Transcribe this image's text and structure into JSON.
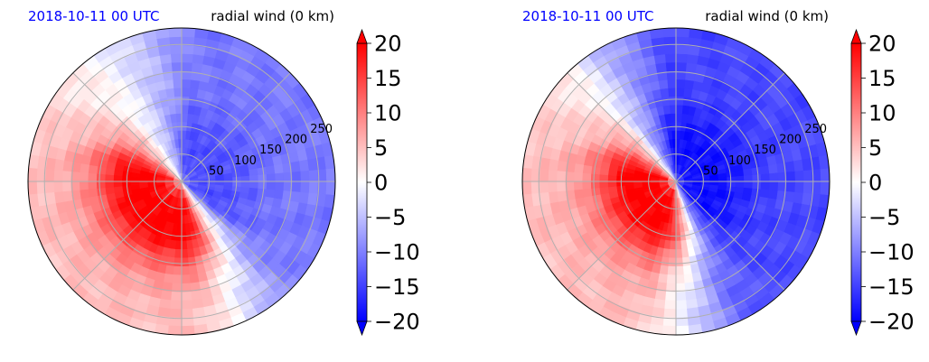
{
  "chart_data": [
    {
      "type": "heatmap",
      "projection": "polar",
      "title_left": "2018-10-11 00 UTC",
      "title_right": "radial wind (0 km)",
      "radial_ticks": [
        50,
        100,
        150,
        200,
        250
      ],
      "r_max": 280,
      "grid": true,
      "colorbar": {
        "ticks": [
          "20",
          "15",
          "10",
          "5",
          "0",
          "−5",
          "−10",
          "−15",
          "−20"
        ],
        "tick_values": [
          20,
          15,
          10,
          5,
          0,
          -5,
          -10,
          -15,
          -20
        ],
        "range": [
          -20,
          20
        ],
        "colormap": "bwr",
        "extend": "both"
      },
      "field_pattern": {
        "positive_sector_deg": [
          150,
          300
        ],
        "peak_value": 20,
        "peak_radius": 70,
        "negative_sector_deg": [
          -60,
          100
        ],
        "min_value": -14
      }
    },
    {
      "type": "heatmap",
      "projection": "polar",
      "title_left": "2018-10-11 00 UTC",
      "title_right": "radial wind (0 km)",
      "radial_ticks": [
        50,
        100,
        150,
        200,
        250
      ],
      "r_max": 280,
      "grid": true,
      "colorbar": {
        "ticks": [
          "20",
          "15",
          "10",
          "5",
          "0",
          "−5",
          "−10",
          "−15",
          "−20"
        ],
        "tick_values": [
          20,
          15,
          10,
          5,
          0,
          -5,
          -10,
          -15,
          -20
        ],
        "range": [
          -20,
          20
        ],
        "colormap": "bwr",
        "extend": "both"
      },
      "field_pattern": {
        "positive_sector_deg": [
          150,
          290
        ],
        "peak_value": 20,
        "peak_radius": 60,
        "negative_sector_deg": [
          -80,
          110
        ],
        "min_value": -19
      }
    }
  ],
  "colors": {
    "negative": "#0000ff",
    "zero": "#ffffff",
    "positive": "#ff0000",
    "grid": "#b0b0b0",
    "title_date": "#0000ff"
  }
}
